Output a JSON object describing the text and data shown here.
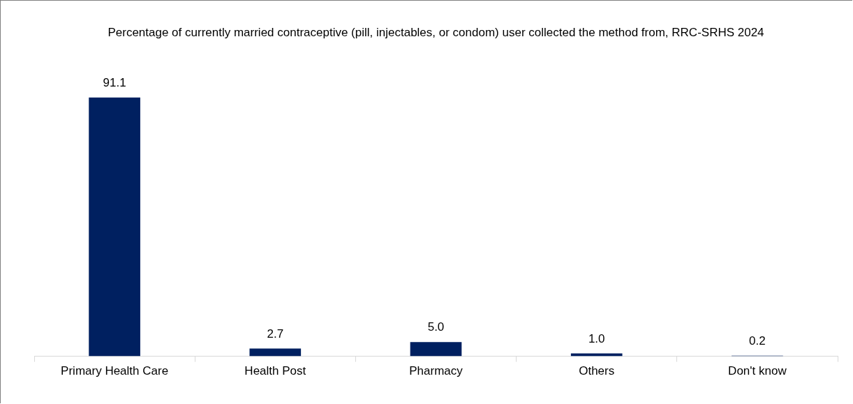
{
  "chart_data": {
    "type": "bar",
    "title": "Percentage of currently married contraceptive (pill, injectables, or condom) user collected the method from, RRC-SRHS 2024",
    "categories": [
      "Primary Health Care",
      "Health Post",
      "Pharmacy",
      "Others",
      "Don't know"
    ],
    "values": [
      91.1,
      2.7,
      5.0,
      1.0,
      0.2
    ],
    "value_labels": [
      "91.1",
      "2.7",
      "5.0",
      "1.0",
      "0.2"
    ],
    "color": "#002060",
    "legend": false,
    "grid": false
  }
}
